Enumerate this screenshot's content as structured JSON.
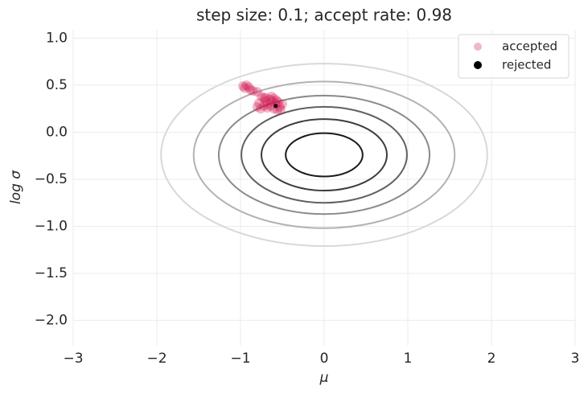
{
  "chart_data": {
    "type": "scatter",
    "title": "step size: 0.1; accept rate: 0.98",
    "xlabel": "μ",
    "ylabel": "log σ",
    "xlim": [
      -3,
      3
    ],
    "ylim": [
      -2.27,
      1.09
    ],
    "xticks": [
      {
        "value": -3,
        "label": "−3"
      },
      {
        "value": -2,
        "label": "−2"
      },
      {
        "value": -1,
        "label": "−1"
      },
      0,
      1,
      2,
      3
    ],
    "yticks": [
      {
        "value": 1,
        "label": "1.0"
      },
      0.5,
      {
        "value": 0,
        "label": "0.0"
      },
      {
        "value": -0.5,
        "label": "−0.5"
      },
      {
        "value": -1,
        "label": "−1.0"
      },
      {
        "value": -1.5,
        "label": "−1.5"
      },
      {
        "value": -2,
        "label": "−2.0"
      }
    ],
    "grid": true,
    "legend": "upper right",
    "contours": {
      "center": [
        0,
        -0.24
      ],
      "half_widths": [
        0.46,
        0.75,
        0.99,
        1.26,
        1.56,
        1.95
      ],
      "half_heights": [
        0.23,
        0.38,
        0.51,
        0.63,
        0.78,
        0.97
      ],
      "colors": [
        "#1a1a1a",
        "#3c3c3c",
        "#606060",
        "#8a8a8a",
        "#b2b2b2",
        "#d8d8d8"
      ]
    },
    "series": [
      {
        "name": "accepted",
        "color": "#d0104c",
        "alpha": 0.3,
        "x": [
          -0.97,
          -0.95,
          -0.93,
          -0.9,
          -0.88,
          -0.85,
          -0.8,
          -0.75,
          -0.72,
          -0.7,
          -0.68,
          -0.65,
          -0.62,
          -0.6,
          -0.58,
          -0.55,
          -0.53,
          -0.52,
          -0.56,
          -0.6,
          -0.64,
          -0.68,
          -0.72,
          -0.76,
          -0.8,
          -0.78,
          -0.7,
          -0.63,
          -0.5,
          -0.57
        ],
        "y": [
          0.49,
          0.47,
          0.5,
          0.48,
          0.45,
          0.44,
          0.43,
          0.38,
          0.36,
          0.33,
          0.3,
          0.35,
          0.33,
          0.36,
          0.3,
          0.32,
          0.27,
          0.24,
          0.24,
          0.25,
          0.28,
          0.26,
          0.28,
          0.25,
          0.27,
          0.31,
          0.37,
          0.38,
          0.3,
          0.34
        ]
      },
      {
        "name": "rejected",
        "color": "#000000",
        "alpha": 1,
        "x": [
          -0.58
        ],
        "y": [
          0.28
        ]
      }
    ]
  }
}
